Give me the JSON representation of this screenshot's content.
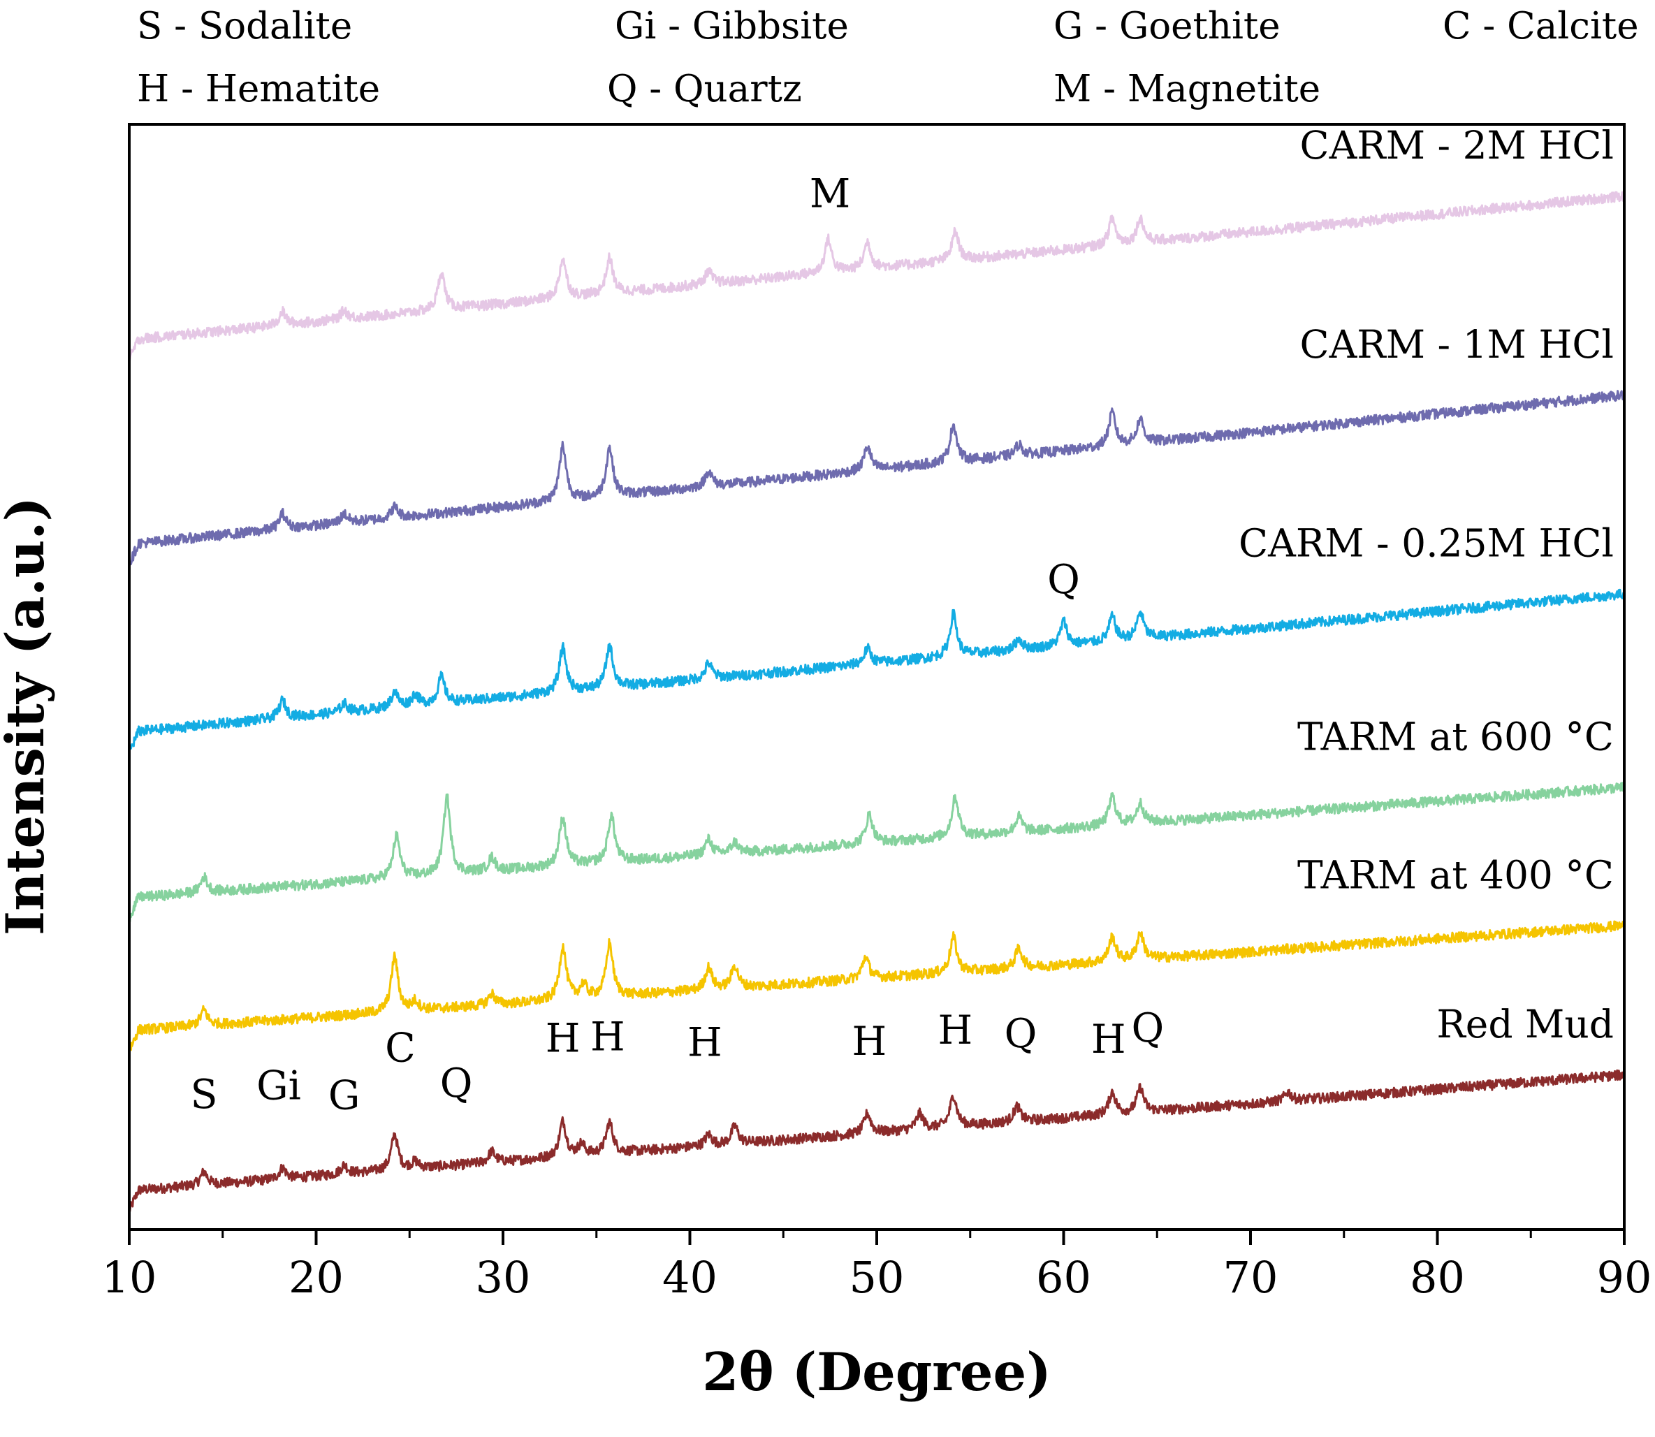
{
  "chart_data": {
    "type": "line",
    "title": "",
    "xlabel": "2θ (Degree)",
    "ylabel": "Intensity (a.u.)",
    "xlim": [
      10,
      90
    ],
    "ylim": [
      0,
      100
    ],
    "xticks": [
      10,
      20,
      30,
      40,
      50,
      60,
      70,
      80,
      90
    ],
    "xtick_labels": [
      "10",
      "20",
      "30",
      "40",
      "50",
      "60",
      "70",
      "80",
      "90"
    ],
    "grid": false,
    "legend": [
      [
        "S - Sodalite",
        "Gi - Gibbsite",
        "G - Goethite",
        "C - Calcite"
      ],
      [
        "H - Hematite",
        "Q - Quartz",
        "M - Magnetite"
      ]
    ],
    "series": [
      {
        "name": "Red Mud",
        "color": "#8B2B2B",
        "baseline": [
          3.5,
          14.0
        ],
        "peaks": [
          [
            14,
            1.2
          ],
          [
            18.2,
            1.0
          ],
          [
            21.5,
            0.8
          ],
          [
            24.2,
            3.2
          ],
          [
            25.3,
            0.6
          ],
          [
            29.4,
            1.0
          ],
          [
            33.2,
            3.2
          ],
          [
            34.2,
            1.0
          ],
          [
            35.7,
            2.8
          ],
          [
            41,
            1.0
          ],
          [
            42.4,
            1.6
          ],
          [
            49.5,
            1.8
          ],
          [
            52.3,
            1.4
          ],
          [
            54.1,
            2.8
          ],
          [
            57.5,
            1.4
          ],
          [
            62.6,
            2.0
          ],
          [
            64.1,
            2.2
          ],
          [
            72,
            0.8
          ]
        ],
        "peak_labels": [
          {
            "text": "S",
            "x": 14,
            "y": 11.0
          },
          {
            "text": "Gi",
            "x": 18,
            "y": 11.8
          },
          {
            "text": "G",
            "x": 21.5,
            "y": 10.9
          },
          {
            "text": "C",
            "x": 24.5,
            "y": 15.2
          },
          {
            "text": "Q",
            "x": 27.5,
            "y": 12.0
          },
          {
            "text": "H",
            "x": 33.2,
            "y": 16.1
          },
          {
            "text": "H",
            "x": 35.6,
            "y": 16.2
          },
          {
            "text": "H",
            "x": 40.8,
            "y": 15.7
          },
          {
            "text": "H",
            "x": 49.6,
            "y": 15.8
          },
          {
            "text": "H",
            "x": 54.2,
            "y": 16.8
          },
          {
            "text": "Q",
            "x": 57.7,
            "y": 16.5
          },
          {
            "text": "H",
            "x": 62.4,
            "y": 16.0
          },
          {
            "text": "Q",
            "x": 64.5,
            "y": 17.0
          }
        ]
      },
      {
        "name": "TARM at 400 °C",
        "color": "#F5C400",
        "baseline": [
          18.0,
          27.5
        ],
        "peaks": [
          [
            14,
            1.4
          ],
          [
            24.2,
            5.0
          ],
          [
            25.3,
            0.8
          ],
          [
            29.4,
            1.0
          ],
          [
            33.2,
            4.8
          ],
          [
            34.3,
            1.2
          ],
          [
            35.7,
            4.8
          ],
          [
            41,
            2.0
          ],
          [
            42.4,
            2.0
          ],
          [
            49.4,
            2.0
          ],
          [
            54.1,
            3.2
          ],
          [
            57.6,
            1.8
          ],
          [
            62.6,
            2.2
          ],
          [
            64.1,
            2.4
          ]
        ],
        "peak_labels": []
      },
      {
        "name": "TARM at 600 °C",
        "color": "#86D29E",
        "baseline": [
          30.0,
          40.0
        ],
        "peaks": [
          [
            14,
            1.4
          ],
          [
            24.3,
            3.8
          ],
          [
            27.0,
            7.0
          ],
          [
            29.4,
            1.2
          ],
          [
            33.2,
            4.4
          ],
          [
            35.8,
            4.2
          ],
          [
            41,
            1.4
          ],
          [
            42.4,
            1.0
          ],
          [
            49.6,
            2.6
          ],
          [
            54.2,
            3.6
          ],
          [
            57.6,
            1.4
          ],
          [
            62.6,
            2.6
          ],
          [
            64.1,
            1.8
          ]
        ],
        "peak_labels": []
      },
      {
        "name": "CARM - 0.25M HCl",
        "color": "#13ACE3",
        "baseline": [
          45.0,
          57.5
        ],
        "peaks": [
          [
            18.2,
            1.6
          ],
          [
            21.5,
            0.8
          ],
          [
            24.2,
            1.4
          ],
          [
            25.3,
            1.0
          ],
          [
            26.7,
            2.4
          ],
          [
            33.2,
            4.0
          ],
          [
            35.7,
            3.8
          ],
          [
            41,
            1.4
          ],
          [
            49.5,
            1.4
          ],
          [
            54.1,
            3.8
          ],
          [
            57.6,
            1.0
          ],
          [
            60.0,
            2.2
          ],
          [
            62.6,
            2.2
          ],
          [
            64.1,
            2.4
          ]
        ],
        "peak_labels": [
          {
            "text": "Q",
            "x": 60,
            "y": 57.6
          }
        ]
      },
      {
        "name": "CARM - 1M HCl",
        "color": "#6E6BAE",
        "baseline": [
          62.0,
          75.5
        ],
        "peaks": [
          [
            18.2,
            1.4
          ],
          [
            21.5,
            0.8
          ],
          [
            24.2,
            1.0
          ],
          [
            33.2,
            5.0
          ],
          [
            35.7,
            4.4
          ],
          [
            41,
            1.4
          ],
          [
            49.5,
            2.2
          ],
          [
            54.1,
            3.4
          ],
          [
            57.6,
            1.0
          ],
          [
            62.6,
            3.0
          ],
          [
            64.1,
            2.2
          ]
        ],
        "peak_labels": []
      },
      {
        "name": "CARM - 2M HCl",
        "color": "#E5C7E5",
        "baseline": [
          80.5,
          93.5
        ],
        "peaks": [
          [
            18.2,
            1.2
          ],
          [
            21.5,
            0.8
          ],
          [
            26.7,
            3.4
          ],
          [
            33.2,
            3.6
          ],
          [
            35.7,
            3.2
          ],
          [
            41,
            1.2
          ],
          [
            47.4,
            3.0
          ],
          [
            49.5,
            2.4
          ],
          [
            54.2,
            2.6
          ],
          [
            62.6,
            2.4
          ],
          [
            64.1,
            2.2
          ]
        ],
        "peak_labels": [
          {
            "text": "M",
            "x": 47.5,
            "y": 92.5
          }
        ]
      }
    ]
  }
}
